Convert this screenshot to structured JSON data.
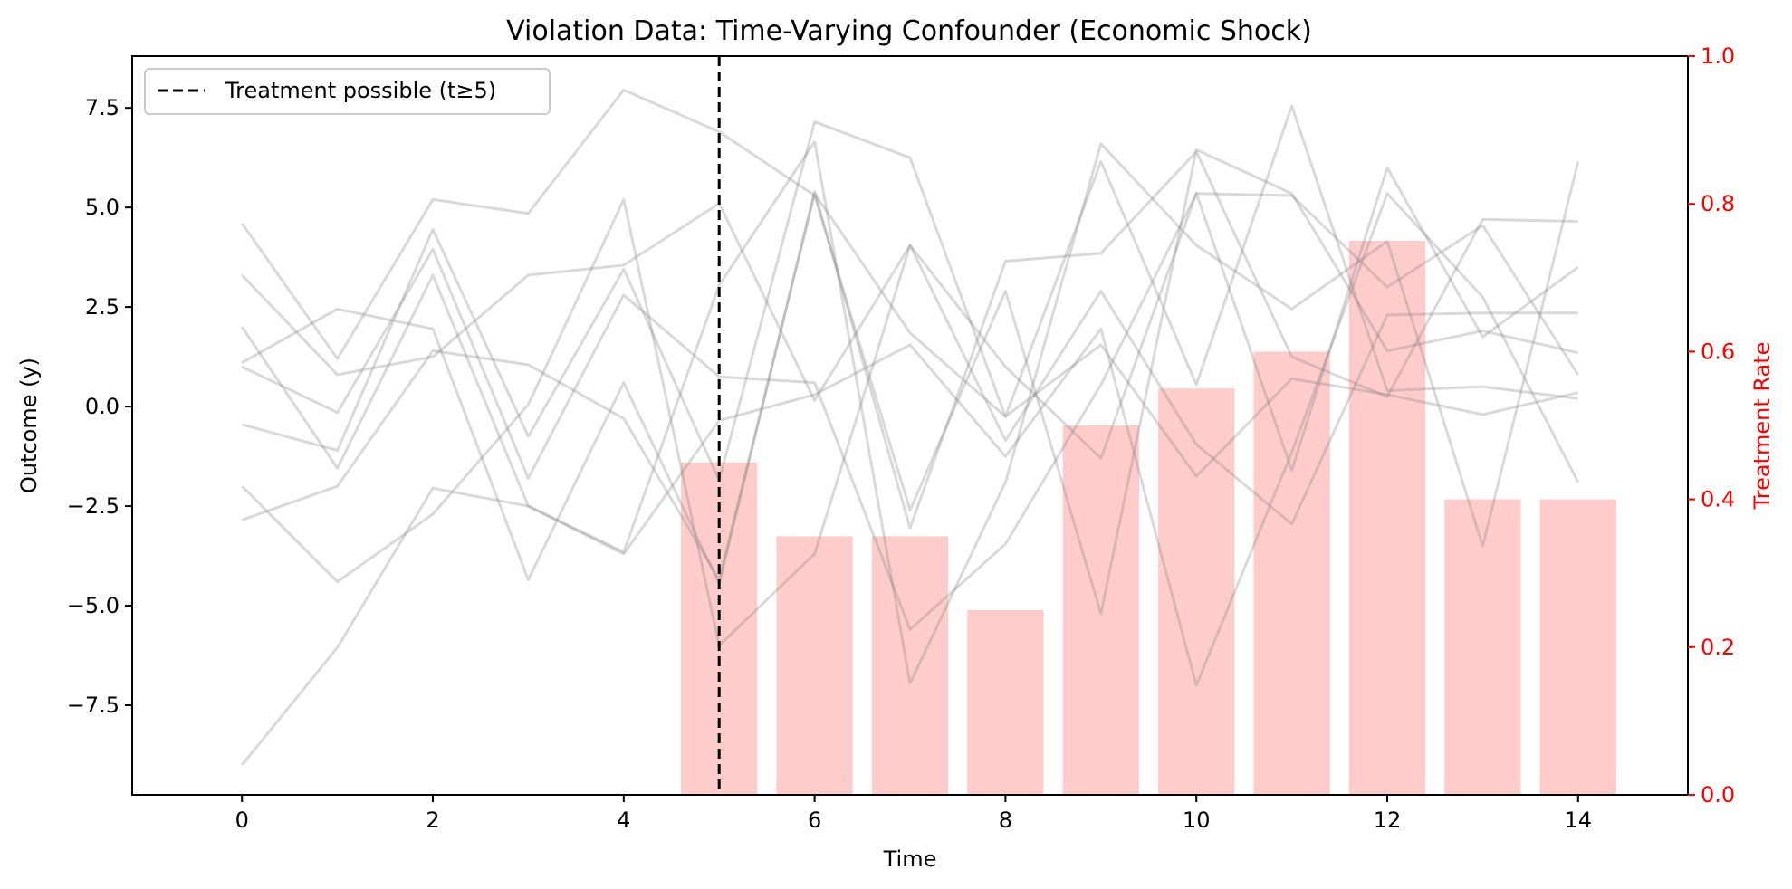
{
  "chart_data": {
    "type": "line",
    "title": "Violation Data: Time-Varying Confounder (Economic Shock)",
    "xlabel": "Time",
    "ylabel": "Outcome (y)",
    "y2label": "Treatment Rate",
    "xlim": [
      -1.15,
      15.15
    ],
    "ylim": [
      -9.75,
      8.8
    ],
    "y2lim": [
      0,
      1.0
    ],
    "x_ticks": [
      0,
      2,
      4,
      6,
      8,
      10,
      12,
      14
    ],
    "y_ticks": [
      -7.5,
      -5.0,
      -2.5,
      0.0,
      2.5,
      5.0,
      7.5
    ],
    "y_tick_labels": [
      "−7.5",
      "−5.0",
      "−2.5",
      "0.0",
      "2.5",
      "5.0",
      "7.5"
    ],
    "y2_ticks": [
      0.0,
      0.2,
      0.4,
      0.6,
      0.8,
      1.0
    ],
    "y2_tick_labels": [
      "0.0",
      "0.2",
      "0.4",
      "0.6",
      "0.8",
      "1.0"
    ],
    "grid": false,
    "legend_position": "upper-left",
    "vline": {
      "x": 5,
      "label": "Treatment possible (t≥5)",
      "style": "dashed",
      "color": "#000000"
    },
    "line_color": "#808080",
    "line_alpha": 0.3,
    "bar_color": "#ff9999",
    "bar_alpha": 0.5,
    "axis2_color": "#ff0000",
    "x": [
      0,
      1,
      2,
      3,
      4,
      5,
      6,
      7,
      8,
      9,
      10,
      11,
      12,
      13,
      14
    ],
    "series": [
      {
        "values": [
          4.6,
          1.2,
          5.2,
          4.85,
          7.95,
          6.9,
          5.3,
          -2.6,
          2.9,
          -5.2,
          6.45,
          5.35,
          1.4,
          1.9,
          1.35
        ]
      },
      {
        "values": [
          3.3,
          0.8,
          1.25,
          3.3,
          3.55,
          5.1,
          0.15,
          4.05,
          1.0,
          -1.3,
          5.35,
          5.3,
          3.0,
          4.55,
          0.8
        ]
      },
      {
        "values": [
          2.0,
          -1.55,
          3.3,
          -2.5,
          -3.65,
          3.05,
          6.65,
          -6.95,
          -1.9,
          6.6,
          4.05,
          2.45,
          4.15,
          -3.5,
          6.15
        ]
      },
      {
        "values": [
          1.1,
          2.45,
          1.95,
          -4.35,
          0.6,
          -4.45,
          5.4,
          -3.05,
          3.65,
          3.85,
          6.4,
          1.25,
          0.25,
          4.7,
          4.65
        ]
      },
      {
        "values": [
          1.0,
          -0.15,
          3.95,
          -1.8,
          2.8,
          0.75,
          0.6,
          -5.6,
          -3.45,
          0.55,
          5.35,
          -1.6,
          6.0,
          1.75,
          3.5
        ]
      },
      {
        "values": [
          -0.45,
          -1.1,
          4.45,
          -0.75,
          3.45,
          -1.85,
          7.15,
          6.25,
          -0.25,
          6.15,
          0.55,
          7.55,
          0.4,
          0.5,
          0.2
        ]
      },
      {
        "values": [
          -2.0,
          -4.4,
          -2.7,
          0.05,
          5.2,
          -6.0,
          -3.7,
          4.05,
          -0.85,
          2.9,
          -0.95,
          -2.95,
          2.3,
          2.35,
          2.35
        ]
      },
      {
        "values": [
          -2.85,
          -2.0,
          1.4,
          1.05,
          -0.3,
          -4.35,
          5.35,
          1.85,
          -0.25,
          1.55,
          -1.75,
          0.7,
          0.3,
          -0.2,
          0.35
        ]
      },
      {
        "values": [
          -9.0,
          -6.05,
          -2.05,
          -2.5,
          -3.7,
          -0.35,
          0.3,
          1.55,
          -1.25,
          1.95,
          -7.0,
          -1.15,
          5.35,
          2.75,
          -1.9
        ]
      }
    ],
    "bars": {
      "x": [
        5,
        6,
        7,
        8,
        9,
        10,
        11,
        12,
        13,
        14
      ],
      "values": [
        0.45,
        0.35,
        0.35,
        0.25,
        0.5,
        0.55,
        0.6,
        0.75,
        0.4,
        0.4
      ]
    }
  }
}
